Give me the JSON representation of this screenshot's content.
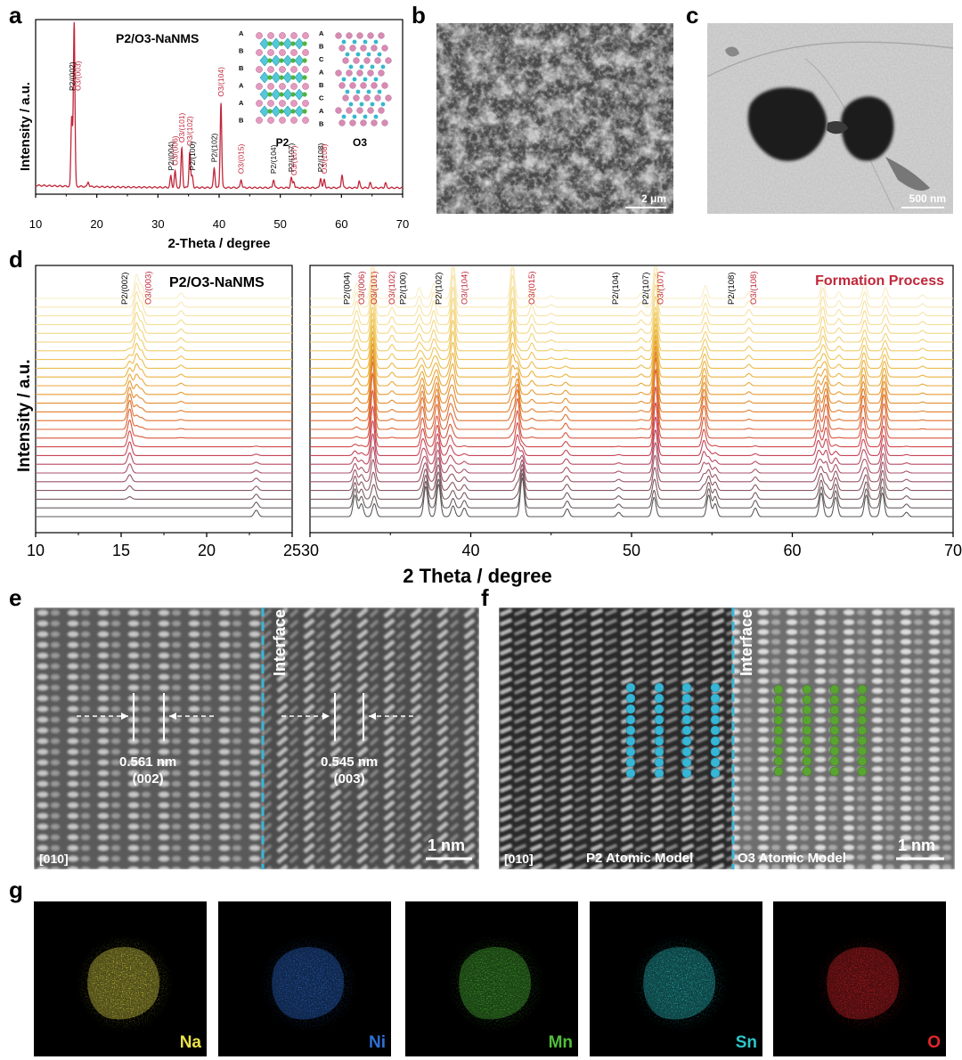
{
  "panels": {
    "a": {
      "letter": "a",
      "title": "P2/O3-NaNMS",
      "ylabel": "Intensity / a.u.",
      "xlabel": "2-Theta / degree",
      "xticks": [
        "10",
        "20",
        "30",
        "40",
        "50",
        "60",
        "70"
      ],
      "inset": {
        "p2_label": "P2",
        "o3_label": "O3",
        "p2_stack": [
          "A",
          "B",
          "B",
          "A",
          "A",
          "B"
        ],
        "o3_stack": [
          "A",
          "B",
          "C",
          "A",
          "B",
          "C",
          "A",
          "B"
        ]
      }
    },
    "b": {
      "letter": "b",
      "scale": "2 μm"
    },
    "c": {
      "letter": "c",
      "scale": "500 nm"
    },
    "d": {
      "letter": "d",
      "title": "P2/O3-NaNMS",
      "legend": "Formation Process",
      "ylabel": "Intensity / a.u.",
      "xlabel": "2 Theta / degree",
      "xticks_left": [
        "10",
        "15",
        "20",
        "25"
      ],
      "xticks_right": [
        "30",
        "40",
        "50",
        "60",
        "70"
      ]
    },
    "e": {
      "letter": "e",
      "interface": "Interface",
      "d1": "0.561 nm",
      "h1": "(002)",
      "d2": "0.545 nm",
      "h2": "(003)",
      "zone": "[010]",
      "scale": "1 nm"
    },
    "f": {
      "letter": "f",
      "interface": "Interface",
      "zone": "[010]",
      "p2_model": "P2 Atomic Model",
      "o3_model": "O3 Atomic Model",
      "scale": "1 nm"
    },
    "g": {
      "letter": "g",
      "maps": [
        {
          "element": "Na",
          "color": "#e8e24a"
        },
        {
          "element": "Ni",
          "color": "#2f6fd6"
        },
        {
          "element": "Mn",
          "color": "#4fbf3a"
        },
        {
          "element": "Sn",
          "color": "#2cc6c9"
        },
        {
          "element": "O",
          "color": "#e0262a"
        }
      ]
    }
  },
  "chart_data": [
    {
      "type": "line",
      "panel": "a",
      "title": "P2/O3-NaNMS",
      "xlabel": "2-Theta / degree",
      "ylabel": "Intensity / a.u.",
      "xlim": [
        10,
        70
      ],
      "series_color": "#c0273a",
      "peaks": [
        {
          "x": 15.9,
          "h": 0.42,
          "label": "",
          "color": "#000000"
        },
        {
          "x": 16.3,
          "h": 1.0,
          "label": "",
          "color": "#000000"
        },
        {
          "x": 18.6,
          "h": 0.03,
          "label": "",
          "color": "#000000"
        },
        {
          "x": 32.1,
          "h": 0.07,
          "label": "P2/(004)",
          "color": "#000000"
        },
        {
          "x": 32.8,
          "h": 0.1,
          "label": "O3/(006)",
          "color": "#c0273a"
        },
        {
          "x": 33.9,
          "h": 0.24,
          "label": "O3/(101)",
          "color": "#c0273a"
        },
        {
          "x": 35.2,
          "h": 0.22,
          "label": "O3/(102)",
          "color": "#c0273a"
        },
        {
          "x": 35.6,
          "h": 0.07,
          "label": "P2/(100)",
          "color": "#000000"
        },
        {
          "x": 39.2,
          "h": 0.12,
          "label": "P2/(102)",
          "color": "#000000"
        },
        {
          "x": 40.3,
          "h": 0.52,
          "label": "O3/(104)",
          "color": "#c0273a"
        },
        {
          "x": 43.6,
          "h": 0.05,
          "label": "O3/(015)",
          "color": "#c0273a"
        },
        {
          "x": 48.9,
          "h": 0.05,
          "label": "P2/(104)",
          "color": "#000000"
        },
        {
          "x": 51.8,
          "h": 0.06,
          "label": "P2/(107)",
          "color": "#000000"
        },
        {
          "x": 52.2,
          "h": 0.04,
          "label": "O3/(107)",
          "color": "#c0273a"
        },
        {
          "x": 56.6,
          "h": 0.06,
          "label": "P2/(108)",
          "color": "#000000"
        },
        {
          "x": 57.2,
          "h": 0.05,
          "label": "O3/(108)",
          "color": "#c0273a"
        },
        {
          "x": 60.1,
          "h": 0.08,
          "label": "",
          "color": "#000000"
        },
        {
          "x": 62.9,
          "h": 0.04,
          "label": "",
          "color": "#000000"
        },
        {
          "x": 64.7,
          "h": 0.03,
          "label": "",
          "color": "#000000"
        },
        {
          "x": 67.2,
          "h": 0.03,
          "label": "",
          "color": "#000000"
        }
      ],
      "peak_labels_top": [
        {
          "x": 16.0,
          "label": "P2/(002)",
          "color": "#000000"
        },
        {
          "x": 16.9,
          "label": "O3/(003)",
          "color": "#c0273a"
        }
      ]
    },
    {
      "type": "line",
      "panel": "d",
      "title": "P2/O3-NaNMS",
      "legend": "Formation Process",
      "xlabel": "2 Theta / degree",
      "ylabel": "Intensity / a.u.",
      "xlim_left": [
        10,
        25
      ],
      "xlim_right": [
        30,
        70
      ],
      "n_curves": 26,
      "colors": [
        "#5a5a5a",
        "#6a5c5e",
        "#7a5b62",
        "#8a5864",
        "#9a5568",
        "#aa5268",
        "#b84a60",
        "#c64458",
        "#cf4a4a",
        "#d5573e",
        "#db6535",
        "#df7232",
        "#e27f30",
        "#e58d30",
        "#e79a32",
        "#e9a738",
        "#ebb240",
        "#edbb4c",
        "#efc45a",
        "#f0cb68",
        "#f2d278",
        "#f3d886",
        "#f5de96",
        "#f6e3a6",
        "#f7e8b6",
        "#f8edc4"
      ],
      "peak_labels": [
        {
          "x": 15.2,
          "label": "P2/(002)",
          "color": "#000000"
        },
        {
          "x": 16.6,
          "label": "O3/(003)",
          "color": "#c0273a"
        },
        {
          "x": 32.3,
          "label": "P2/(004)",
          "color": "#000000"
        },
        {
          "x": 33.2,
          "label": "O3/(006)",
          "color": "#c0273a"
        },
        {
          "x": 34.0,
          "label": "O3/(101)",
          "color": "#c0273a"
        },
        {
          "x": 35.1,
          "label": "O3/(102)",
          "color": "#c0273a"
        },
        {
          "x": 35.8,
          "label": "P2/(100)",
          "color": "#000000"
        },
        {
          "x": 38.0,
          "label": "P2/(102)",
          "color": "#000000"
        },
        {
          "x": 39.6,
          "label": "O3/(104)",
          "color": "#c0273a"
        },
        {
          "x": 43.8,
          "label": "O3/(015)",
          "color": "#c0273a"
        },
        {
          "x": 49.0,
          "label": "P2/(104)",
          "color": "#000000"
        },
        {
          "x": 50.9,
          "label": "P2/(107)",
          "color": "#000000"
        },
        {
          "x": 51.8,
          "label": "O3/(107)",
          "color": "#c0273a"
        },
        {
          "x": 56.2,
          "label": "P2/(108)",
          "color": "#000000"
        },
        {
          "x": 57.6,
          "label": "O3/(108)",
          "color": "#c0273a"
        }
      ]
    }
  ]
}
